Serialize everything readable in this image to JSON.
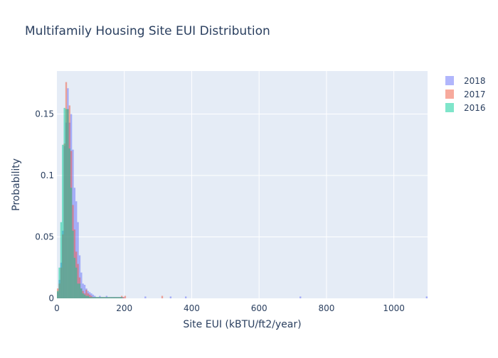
{
  "chart_data": {
    "type": "bar",
    "barmode": "overlay",
    "title": "Multifamily Housing Site EUI Distribution",
    "xlabel": "Site EUI (kBTU/ft2/year)",
    "ylabel": "Probability",
    "xlim": [
      0,
      1100
    ],
    "ylim": [
      0,
      0.185
    ],
    "bin_width": 5,
    "x_ticks": [
      0,
      200,
      400,
      600,
      800,
      1000
    ],
    "y_ticks": [
      0,
      0.05,
      0.1,
      0.15
    ],
    "y_tick_labels": [
      "0",
      "0.05",
      "0.1",
      "0.15"
    ],
    "grid": true,
    "legend_position": "top-right",
    "plot_bgcolor": "#e5ecf6",
    "series": [
      {
        "name": "2018",
        "color": "#636efa",
        "x": [
          0,
          5,
          10,
          15,
          20,
          25,
          30,
          35,
          40,
          45,
          50,
          55,
          60,
          65,
          70,
          75,
          80,
          85,
          90,
          95,
          100,
          105,
          110,
          115,
          120,
          125,
          130,
          135,
          140,
          145,
          150,
          155,
          160,
          165,
          170,
          175,
          180,
          185,
          190,
          195,
          260,
          335,
          380,
          720,
          1095
        ],
        "y": [
          0.005,
          0.015,
          0.029,
          0.055,
          0.124,
          0.143,
          0.171,
          0.143,
          0.15,
          0.121,
          0.09,
          0.079,
          0.062,
          0.035,
          0.021,
          0.012,
          0.011,
          0.008,
          0.006,
          0.005,
          0.004,
          0.003,
          0.002,
          0.001,
          0.001,
          0.002,
          0.001,
          0.001,
          0.001,
          0.002,
          0.001,
          0.001,
          0.001,
          0.001,
          0.001,
          0.001,
          0.001,
          0.001,
          0.001,
          0.001,
          0.0015,
          0.0015,
          0.0015,
          0.0015,
          0.0015
        ]
      },
      {
        "name": "2017",
        "color": "#ef553b",
        "x": [
          0,
          5,
          10,
          15,
          20,
          25,
          30,
          35,
          40,
          45,
          50,
          55,
          60,
          65,
          70,
          75,
          80,
          85,
          90,
          95,
          100,
          105,
          110,
          115,
          120,
          125,
          130,
          135,
          140,
          145,
          150,
          155,
          160,
          165,
          170,
          175,
          180,
          185,
          190,
          195,
          200,
          310
        ],
        "y": [
          0.008,
          0.012,
          0.025,
          0.052,
          0.126,
          0.176,
          0.154,
          0.157,
          0.12,
          0.076,
          0.056,
          0.038,
          0.028,
          0.017,
          0.008,
          0.006,
          0.004,
          0.007,
          0.004,
          0.003,
          0.002,
          0.001,
          0.001,
          0.001,
          0.001,
          0.001,
          0.001,
          0.001,
          0.001,
          0.001,
          0.001,
          0.001,
          0.001,
          0.001,
          0.001,
          0.001,
          0.001,
          0.001,
          0.002,
          0.001,
          0.002,
          0.002
        ]
      },
      {
        "name": "2016",
        "color": "#00cc96",
        "x": [
          0,
          5,
          10,
          15,
          20,
          25,
          30,
          35,
          40,
          45,
          50,
          55,
          60,
          65,
          70,
          75,
          80,
          85,
          90,
          95,
          100,
          105,
          110,
          115,
          120,
          125,
          130,
          135,
          140,
          145,
          150,
          155,
          160,
          165,
          170,
          175,
          180,
          185,
          190
        ],
        "y": [
          0.006,
          0.025,
          0.062,
          0.125,
          0.155,
          0.154,
          0.154,
          0.122,
          0.09,
          0.055,
          0.033,
          0.025,
          0.012,
          0.012,
          0.008,
          0.004,
          0.003,
          0.002,
          0.002,
          0.001,
          0.001,
          0.001,
          0.001,
          0.001,
          0.001,
          0.001,
          0.001,
          0.001,
          0.001,
          0.001,
          0.001,
          0.001,
          0.001,
          0.001,
          0.001,
          0.001,
          0.001,
          0.001,
          0.001
        ]
      }
    ]
  }
}
